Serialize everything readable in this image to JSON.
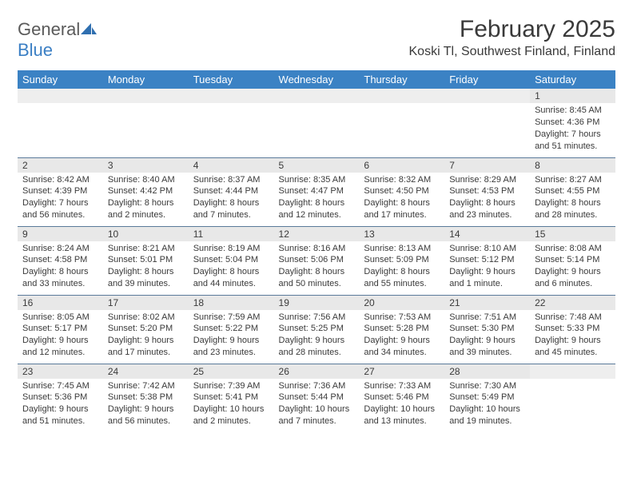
{
  "logo": {
    "text1": "General",
    "text2": "Blue"
  },
  "title": "February 2025",
  "location": "Koski Tl, Southwest Finland, Finland",
  "colors": {
    "header_bg": "#3b82c4",
    "header_text": "#ffffff",
    "daynum_bg": "#e8e8e8",
    "row_sep": "#5a7a9a",
    "text": "#3a3a3a",
    "logo_gray": "#5a5a5a",
    "logo_blue": "#3b7fc4"
  },
  "day_labels": [
    "Sunday",
    "Monday",
    "Tuesday",
    "Wednesday",
    "Thursday",
    "Friday",
    "Saturday"
  ],
  "weeks": [
    [
      {
        "n": "",
        "empty": true
      },
      {
        "n": "",
        "empty": true
      },
      {
        "n": "",
        "empty": true
      },
      {
        "n": "",
        "empty": true
      },
      {
        "n": "",
        "empty": true
      },
      {
        "n": "",
        "empty": true
      },
      {
        "n": "1",
        "sunrise": "Sunrise: 8:45 AM",
        "sunset": "Sunset: 4:36 PM",
        "daylight": "Daylight: 7 hours and 51 minutes."
      }
    ],
    [
      {
        "n": "2",
        "sunrise": "Sunrise: 8:42 AM",
        "sunset": "Sunset: 4:39 PM",
        "daylight": "Daylight: 7 hours and 56 minutes."
      },
      {
        "n": "3",
        "sunrise": "Sunrise: 8:40 AM",
        "sunset": "Sunset: 4:42 PM",
        "daylight": "Daylight: 8 hours and 2 minutes."
      },
      {
        "n": "4",
        "sunrise": "Sunrise: 8:37 AM",
        "sunset": "Sunset: 4:44 PM",
        "daylight": "Daylight: 8 hours and 7 minutes."
      },
      {
        "n": "5",
        "sunrise": "Sunrise: 8:35 AM",
        "sunset": "Sunset: 4:47 PM",
        "daylight": "Daylight: 8 hours and 12 minutes."
      },
      {
        "n": "6",
        "sunrise": "Sunrise: 8:32 AM",
        "sunset": "Sunset: 4:50 PM",
        "daylight": "Daylight: 8 hours and 17 minutes."
      },
      {
        "n": "7",
        "sunrise": "Sunrise: 8:29 AM",
        "sunset": "Sunset: 4:53 PM",
        "daylight": "Daylight: 8 hours and 23 minutes."
      },
      {
        "n": "8",
        "sunrise": "Sunrise: 8:27 AM",
        "sunset": "Sunset: 4:55 PM",
        "daylight": "Daylight: 8 hours and 28 minutes."
      }
    ],
    [
      {
        "n": "9",
        "sunrise": "Sunrise: 8:24 AM",
        "sunset": "Sunset: 4:58 PM",
        "daylight": "Daylight: 8 hours and 33 minutes."
      },
      {
        "n": "10",
        "sunrise": "Sunrise: 8:21 AM",
        "sunset": "Sunset: 5:01 PM",
        "daylight": "Daylight: 8 hours and 39 minutes."
      },
      {
        "n": "11",
        "sunrise": "Sunrise: 8:19 AM",
        "sunset": "Sunset: 5:04 PM",
        "daylight": "Daylight: 8 hours and 44 minutes."
      },
      {
        "n": "12",
        "sunrise": "Sunrise: 8:16 AM",
        "sunset": "Sunset: 5:06 PM",
        "daylight": "Daylight: 8 hours and 50 minutes."
      },
      {
        "n": "13",
        "sunrise": "Sunrise: 8:13 AM",
        "sunset": "Sunset: 5:09 PM",
        "daylight": "Daylight: 8 hours and 55 minutes."
      },
      {
        "n": "14",
        "sunrise": "Sunrise: 8:10 AM",
        "sunset": "Sunset: 5:12 PM",
        "daylight": "Daylight: 9 hours and 1 minute."
      },
      {
        "n": "15",
        "sunrise": "Sunrise: 8:08 AM",
        "sunset": "Sunset: 5:14 PM",
        "daylight": "Daylight: 9 hours and 6 minutes."
      }
    ],
    [
      {
        "n": "16",
        "sunrise": "Sunrise: 8:05 AM",
        "sunset": "Sunset: 5:17 PM",
        "daylight": "Daylight: 9 hours and 12 minutes."
      },
      {
        "n": "17",
        "sunrise": "Sunrise: 8:02 AM",
        "sunset": "Sunset: 5:20 PM",
        "daylight": "Daylight: 9 hours and 17 minutes."
      },
      {
        "n": "18",
        "sunrise": "Sunrise: 7:59 AM",
        "sunset": "Sunset: 5:22 PM",
        "daylight": "Daylight: 9 hours and 23 minutes."
      },
      {
        "n": "19",
        "sunrise": "Sunrise: 7:56 AM",
        "sunset": "Sunset: 5:25 PM",
        "daylight": "Daylight: 9 hours and 28 minutes."
      },
      {
        "n": "20",
        "sunrise": "Sunrise: 7:53 AM",
        "sunset": "Sunset: 5:28 PM",
        "daylight": "Daylight: 9 hours and 34 minutes."
      },
      {
        "n": "21",
        "sunrise": "Sunrise: 7:51 AM",
        "sunset": "Sunset: 5:30 PM",
        "daylight": "Daylight: 9 hours and 39 minutes."
      },
      {
        "n": "22",
        "sunrise": "Sunrise: 7:48 AM",
        "sunset": "Sunset: 5:33 PM",
        "daylight": "Daylight: 9 hours and 45 minutes."
      }
    ],
    [
      {
        "n": "23",
        "sunrise": "Sunrise: 7:45 AM",
        "sunset": "Sunset: 5:36 PM",
        "daylight": "Daylight: 9 hours and 51 minutes."
      },
      {
        "n": "24",
        "sunrise": "Sunrise: 7:42 AM",
        "sunset": "Sunset: 5:38 PM",
        "daylight": "Daylight: 9 hours and 56 minutes."
      },
      {
        "n": "25",
        "sunrise": "Sunrise: 7:39 AM",
        "sunset": "Sunset: 5:41 PM",
        "daylight": "Daylight: 10 hours and 2 minutes."
      },
      {
        "n": "26",
        "sunrise": "Sunrise: 7:36 AM",
        "sunset": "Sunset: 5:44 PM",
        "daylight": "Daylight: 10 hours and 7 minutes."
      },
      {
        "n": "27",
        "sunrise": "Sunrise: 7:33 AM",
        "sunset": "Sunset: 5:46 PM",
        "daylight": "Daylight: 10 hours and 13 minutes."
      },
      {
        "n": "28",
        "sunrise": "Sunrise: 7:30 AM",
        "sunset": "Sunset: 5:49 PM",
        "daylight": "Daylight: 10 hours and 19 minutes."
      },
      {
        "n": "",
        "empty": true
      }
    ]
  ]
}
